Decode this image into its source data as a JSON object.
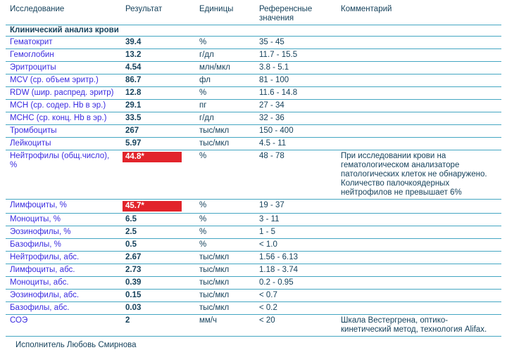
{
  "header": {
    "columns": [
      "Исследование",
      "Результат",
      "Единицы",
      "Референсные значения",
      "Комментарий"
    ]
  },
  "section": {
    "title": "Клинический анализ крови"
  },
  "table": {
    "rows": [
      {
        "name": "Гематокрит",
        "result": "39.4",
        "units": "%",
        "reference": "35 - 45",
        "comment": "",
        "highlight": false
      },
      {
        "name": "Гемоглобин",
        "result": "13.2",
        "units": "г/дл",
        "reference": "11.7 - 15.5",
        "comment": "",
        "highlight": false
      },
      {
        "name": "Эритроциты",
        "result": "4.54",
        "units": "млн/мкл",
        "reference": "3.8 - 5.1",
        "comment": "",
        "highlight": false
      },
      {
        "name": "MCV (ср. объем эритр.)",
        "result": "86.7",
        "units": "фл",
        "reference": "81 - 100",
        "comment": "",
        "highlight": false
      },
      {
        "name": "RDW (шир. распред. эритр)",
        "result": "12.8",
        "units": "%",
        "reference": "11.6 - 14.8",
        "comment": "",
        "highlight": false
      },
      {
        "name": "MCH (ср. содер. Hb в эр.)",
        "result": "29.1",
        "units": "пг",
        "reference": "27 - 34",
        "comment": "",
        "highlight": false
      },
      {
        "name": "MCHC (ср. конц. Hb в эр.)",
        "result": "33.5",
        "units": "г/дл",
        "reference": "32 - 36",
        "comment": "",
        "highlight": false
      },
      {
        "name": "Тромбоциты",
        "result": "267",
        "units": "тыс/мкл",
        "reference": "150 - 400",
        "comment": "",
        "highlight": false
      },
      {
        "name": "Лейкоциты",
        "result": "5.97",
        "units": "тыс/мкл",
        "reference": "4.5 - 11",
        "comment": "",
        "highlight": false
      },
      {
        "name": "Нейтрофилы (общ.число), %",
        "result": "44.8*",
        "units": "%",
        "reference": "48 - 78",
        "comment": "При исследовании крови на гематологическом анализаторе патологических клеток не обнаружено. Количество палочкоядерных нейтрофилов не превышает 6%",
        "highlight": true
      },
      {
        "name": "Лимфоциты, %",
        "result": "45.7*",
        "units": "%",
        "reference": "19 - 37",
        "comment": "",
        "highlight": true
      },
      {
        "name": "Моноциты, %",
        "result": "6.5",
        "units": "%",
        "reference": "3 - 11",
        "comment": "",
        "highlight": false
      },
      {
        "name": "Эозинофилы, %",
        "result": "2.5",
        "units": "%",
        "reference": "1 - 5",
        "comment": "",
        "highlight": false
      },
      {
        "name": "Базофилы, %",
        "result": "0.5",
        "units": "%",
        "reference": "< 1.0",
        "comment": "",
        "highlight": false
      },
      {
        "name": "Нейтрофилы, абс.",
        "result": "2.67",
        "units": "тыс/мкл",
        "reference": "1.56 - 6.13",
        "comment": "",
        "highlight": false
      },
      {
        "name": "Лимфоциты, абс.",
        "result": "2.73",
        "units": "тыс/мкл",
        "reference": "1.18 - 3.74",
        "comment": "",
        "highlight": false
      },
      {
        "name": "Моноциты, абс.",
        "result": "0.39",
        "units": "тыс/мкл",
        "reference": "0.2 - 0.95",
        "comment": "",
        "highlight": false
      },
      {
        "name": "Эозинофилы, абс.",
        "result": "0.15",
        "units": "тыс/мкл",
        "reference": "< 0.7",
        "comment": "",
        "highlight": false
      },
      {
        "name": "Базофилы, абс.",
        "result": "0.03",
        "units": "тыс/мкл",
        "reference": "< 0.2",
        "comment": "",
        "highlight": false
      },
      {
        "name": "СОЭ",
        "result": "2",
        "units": "мм/ч",
        "reference": "< 20",
        "comment": "Шкала Вестергрена, оптико-кинетический метод, технология Alifax.",
        "highlight": false
      }
    ]
  },
  "footer": {
    "executor": "Исполнитель Любовь Смирнова"
  },
  "colors": {
    "rule_teal": "#44a6c2",
    "dark_text": "#16425c",
    "test_name_blue": "#3a2be0",
    "abnormal_red": "#e2242b",
    "abnormal_text": "#ffffff"
  }
}
